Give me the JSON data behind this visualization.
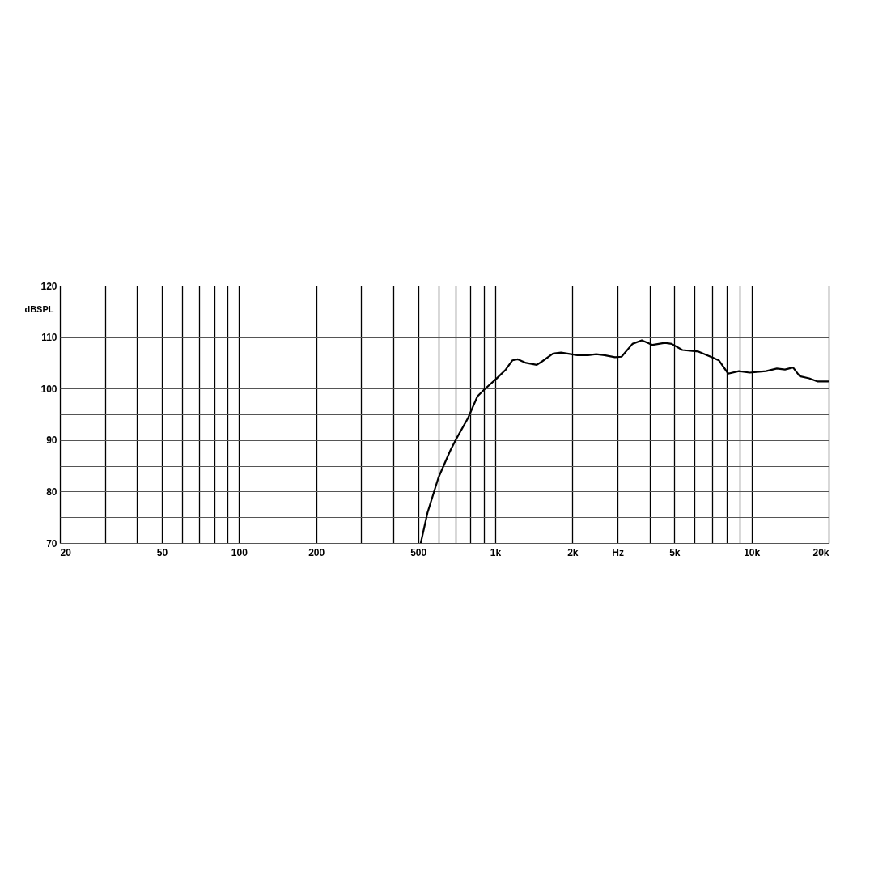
{
  "chart_data": {
    "type": "line",
    "ylabel": "dBSPL",
    "log": "x",
    "grid": true,
    "marker": "none",
    "line_style": "solid",
    "xlim": [
      20,
      20000
    ],
    "ylim": [
      70,
      120
    ],
    "xticks": [
      20,
      {
        "value": 30,
        "label": null
      },
      {
        "value": 40,
        "label": null
      },
      50,
      {
        "value": 60,
        "label": null
      },
      {
        "value": 70,
        "label": null
      },
      {
        "value": 80,
        "label": null
      },
      {
        "value": 90,
        "label": null
      },
      100,
      200,
      {
        "value": 300,
        "label": null
      },
      {
        "value": 400,
        "label": null
      },
      500,
      {
        "value": 600,
        "label": null
      },
      {
        "value": 700,
        "label": null
      },
      {
        "value": 800,
        "label": null
      },
      {
        "value": 900,
        "label": null
      },
      {
        "value": 1000,
        "label": "1k"
      },
      {
        "value": 2000,
        "label": "2k"
      },
      {
        "value": 3000,
        "label": "Hz"
      },
      {
        "value": 4000,
        "label": null
      },
      {
        "value": 5000,
        "label": "5k"
      },
      {
        "value": 6000,
        "label": null
      },
      {
        "value": 7000,
        "label": null
      },
      {
        "value": 8000,
        "label": null
      },
      {
        "value": 9000,
        "label": null
      },
      {
        "value": 10000,
        "label": "10k"
      },
      {
        "value": 20000,
        "label": "20k"
      }
    ],
    "yticks": [
      70,
      {
        "value": 75,
        "label": null
      },
      80,
      {
        "value": 85,
        "label": null
      },
      90,
      {
        "value": 95,
        "label": null
      },
      100,
      {
        "value": 105,
        "label": null
      },
      110,
      {
        "value": 115,
        "label": null
      },
      120
    ],
    "series": [
      {
        "color": "#000000",
        "x": [
          512,
          544,
          600,
          668,
          702,
          783,
          852,
          905,
          1009,
          1099,
          1167,
          1225,
          1318,
          1452,
          1524,
          1680,
          1805,
          2089,
          2302,
          2477,
          2663,
          2930,
          3110,
          3430,
          3730,
          4110,
          4590,
          4880,
          5370,
          6210,
          7010,
          7450,
          8110,
          8930,
          9840,
          11390,
          12550,
          13500,
          14520,
          15420,
          16780,
          18040,
          19900
        ],
        "values": [
          70,
          75.9,
          82.7,
          88,
          90.1,
          94.3,
          98.5,
          99.8,
          101.9,
          103.7,
          105.5,
          105.7,
          105,
          104.6,
          105.3,
          106.8,
          107,
          106.5,
          106.5,
          106.7,
          106.5,
          106.1,
          106.2,
          108.7,
          109.4,
          108.5,
          108.9,
          108.7,
          107.5,
          107.2,
          106.1,
          105.5,
          102.9,
          103.4,
          103.1,
          103.4,
          103.9,
          103.7,
          104.1,
          102.4,
          102,
          101.4,
          101.4
        ]
      }
    ]
  }
}
